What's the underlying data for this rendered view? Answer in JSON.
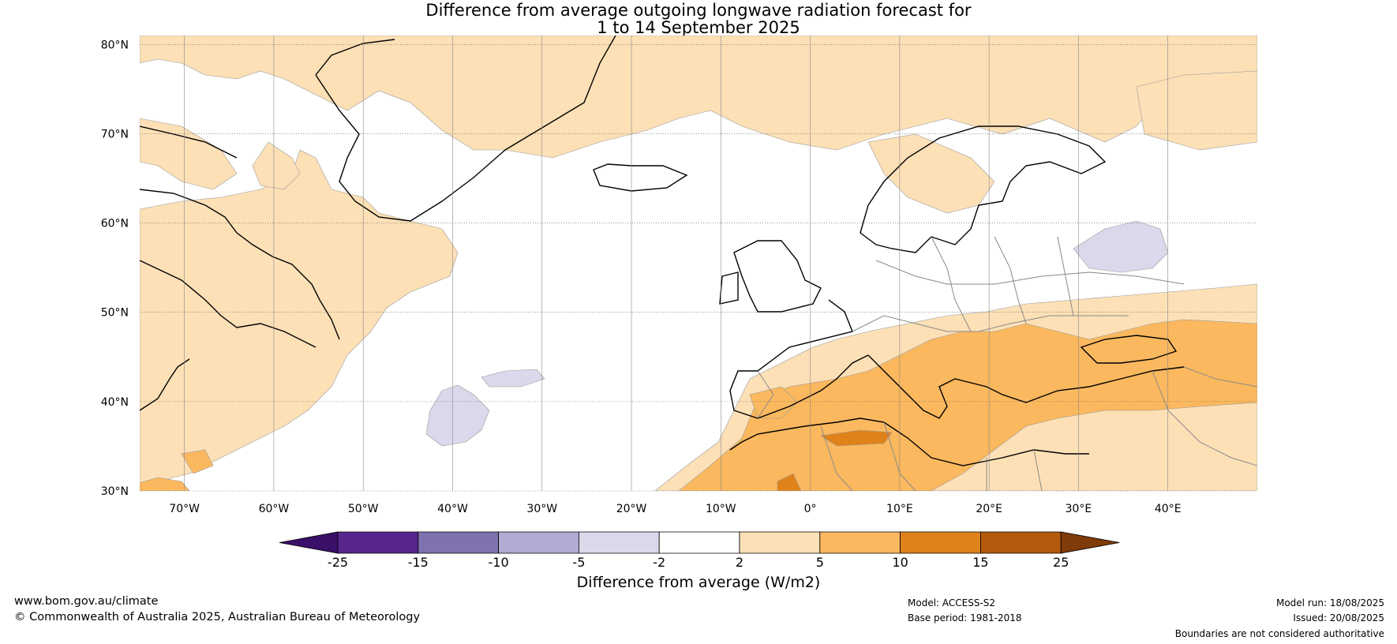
{
  "title": {
    "line1": "Difference from average outgoing longwave radiation forecast for",
    "line2": "1 to 14 September 2025"
  },
  "map": {
    "lat_labels": [
      "80°N",
      "70°N",
      "60°N",
      "50°N",
      "40°N",
      "30°N"
    ],
    "lon_labels": [
      "70°W",
      "60°W",
      "50°W",
      "40°W",
      "30°W",
      "20°W",
      "10°W",
      "0°",
      "10°E",
      "20°E",
      "30°E",
      "40°E"
    ],
    "extent": {
      "lon_min": -75,
      "lon_max": 50,
      "lat_min": 30,
      "lat_max": 81
    }
  },
  "colorbar": {
    "title": "Difference from average (W/m2)",
    "tick_labels": [
      "-25",
      "-15",
      "-10",
      "-5",
      "-2",
      "2",
      "5",
      "10",
      "15",
      "25"
    ],
    "colors": [
      "#3b1068",
      "#56268d",
      "#7f72ae",
      "#b1aad3",
      "#d9d9eb",
      "#ffffff",
      "#fde0b6",
      "#fbb85e",
      "#e0821a",
      "#b35a0c",
      "#7f3b08"
    ]
  },
  "footer": {
    "website": "www.bom.gov.au/climate",
    "copyright": "© Commonwealth of Australia 2025, Australian Bureau of Meteorology",
    "model": "Model: ACCESS-S2",
    "base_period": "Base period: 1981-2018",
    "model_run": "Model run: 18/08/2025",
    "issued": "Issued: 20/08/2025",
    "disclaimer": "Boundaries are not considered authoritative"
  }
}
